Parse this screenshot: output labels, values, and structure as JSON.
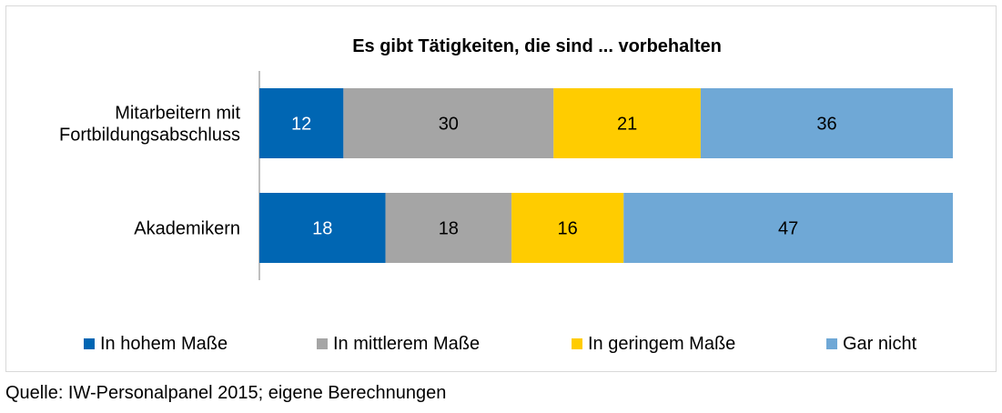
{
  "chart_data": {
    "type": "bar",
    "orientation": "horizontal",
    "stacked": true,
    "title": "Es gibt Tätigkeiten, die sind ... vorbehalten",
    "categories": [
      "Mitarbeitern mit Fortbildungsabschluss",
      "Akademikern"
    ],
    "category_lines": [
      [
        "Mitarbeitern mit",
        "Fortbildungsabschluss"
      ],
      [
        "Akademikern"
      ]
    ],
    "series": [
      {
        "name": "In hohem Maße",
        "color": "#0066b3",
        "label_color": "#ffffff",
        "values": [
          12,
          18
        ]
      },
      {
        "name": "In mittlerem Maße",
        "color": "#a5a5a5",
        "label_color": "#000000",
        "values": [
          30,
          18
        ]
      },
      {
        "name": "In geringem Maße",
        "color": "#ffcc00",
        "label_color": "#000000",
        "values": [
          21,
          16
        ]
      },
      {
        "name": "Gar nicht",
        "color": "#6fa8d6",
        "label_color": "#000000",
        "values": [
          36,
          47
        ]
      }
    ],
    "xlim": [
      0,
      99
    ],
    "grid": false,
    "legend_position": "bottom"
  },
  "source": "Quelle: IW-Personalpanel 2015; eigene Berechnungen"
}
